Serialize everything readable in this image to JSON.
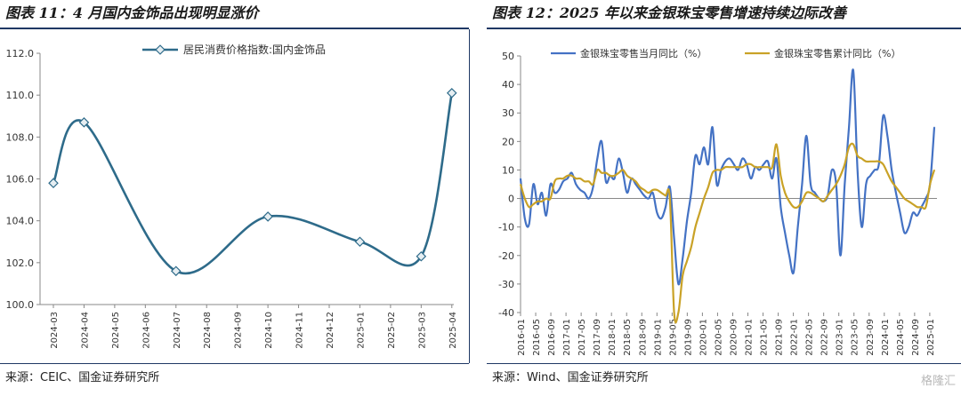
{
  "charts": [
    {
      "title": "图表 11：4 月国内金饰品出现明显涨价",
      "source": "来源：CEIC、国金证券研究所"
    },
    {
      "title": "图表 12：2025 年以来金银珠宝零售增速持续边际改善",
      "source": "来源：Wind、国金证券研究所"
    }
  ],
  "watermark": "格隆汇",
  "chart_data": [
    {
      "type": "line",
      "title": "图表 11：4 月国内金饰品出现明显涨价",
      "categories": [
        "2024-03",
        "2024-04",
        "2024-05",
        "2024-06",
        "2024-07",
        "2024-08",
        "2024-09",
        "2024-10",
        "2024-11",
        "2024-12",
        "2025-01",
        "2025-02",
        "2025-03",
        "2025-04"
      ],
      "series": [
        {
          "name": "居民消费价格指数:国内金饰品",
          "color": "#2e6b8a",
          "values": [
            105.8,
            108.7,
            null,
            null,
            101.6,
            null,
            null,
            104.2,
            null,
            null,
            103.0,
            null,
            102.3,
            110.1
          ]
        }
      ],
      "ylim": [
        100.0,
        112.0
      ],
      "yticks": [
        "100.0",
        "102.0",
        "104.0",
        "106.0",
        "108.0",
        "110.0",
        "112.0"
      ],
      "legend": "top-center",
      "grid": false
    },
    {
      "type": "line",
      "title": "图表 12：2025 年以来金银珠宝零售增速持续边际改善",
      "x_labels": [
        "2016-01",
        "2016-05",
        "2016-09",
        "2017-01",
        "2017-05",
        "2017-09",
        "2018-01",
        "2018-05",
        "2018-09",
        "2019-01",
        "2019-05",
        "2019-09",
        "2020-01",
        "2020-05",
        "2020-09",
        "2021-01",
        "2021-05",
        "2021-09",
        "2022-01",
        "2022-05",
        "2022-09",
        "2023-01",
        "2023-05",
        "2023-09",
        "2024-01",
        "2024-05",
        "2024-09",
        "2025-01"
      ],
      "ylim": [
        -40,
        50
      ],
      "yticks": [
        "-40",
        "-30",
        "-20",
        "-10",
        "0",
        "10",
        "20",
        "30",
        "40",
        "50"
      ],
      "legend": "top",
      "grid": false,
      "series": [
        {
          "name": "金银珠宝零售当月同比（%）",
          "color": "#4472c4",
          "values": [
            7,
            -7,
            -9,
            5,
            -2,
            2,
            -6,
            5,
            2,
            3,
            6,
            7,
            9,
            5,
            3,
            2,
            0,
            4,
            14,
            20,
            6,
            8,
            7,
            14,
            9,
            2,
            7,
            5,
            3,
            1,
            0,
            2,
            -5,
            -7,
            -3,
            4,
            -14,
            -30,
            -21,
            -8,
            2,
            15,
            12,
            18,
            12,
            25,
            5,
            10,
            13,
            14,
            12,
            10,
            14,
            12,
            7,
            11,
            10,
            12,
            13,
            7,
            14,
            -3,
            -12,
            -20,
            -26,
            -10,
            5,
            22,
            5,
            2,
            0,
            -1,
            1,
            10,
            5,
            -20,
            5,
            25,
            45,
            10,
            -10,
            5,
            8,
            10,
            12,
            29,
            22,
            10,
            2,
            -5,
            -12,
            -10,
            -5,
            -6,
            -3,
            0,
            5,
            25
          ]
        },
        {
          "name": "金银珠宝零售累计同比（%）",
          "color": "#c9a227",
          "values": [
            5,
            0,
            -3,
            -2,
            -1,
            -1,
            0,
            0,
            6,
            7,
            7,
            8,
            8,
            7,
            7,
            6,
            6,
            5,
            10,
            9,
            9,
            8,
            8,
            9,
            10,
            8,
            7,
            6,
            4,
            3,
            2,
            3,
            3,
            2,
            1,
            0,
            -40,
            -40,
            -27,
            -22,
            -17,
            -10,
            -5,
            0,
            4,
            9,
            10,
            10,
            11,
            11,
            11,
            11,
            11,
            12,
            12,
            11,
            11,
            11,
            11,
            11,
            19,
            8,
            2,
            -1,
            -3,
            -3,
            -1,
            2,
            2,
            1,
            0,
            -1,
            1,
            3,
            5,
            8,
            12,
            18,
            19,
            15,
            14,
            13,
            13,
            13,
            13,
            12,
            9,
            6,
            4,
            2,
            0,
            -1,
            -2,
            -3,
            -3,
            -3,
            5,
            10
          ]
        }
      ]
    }
  ]
}
